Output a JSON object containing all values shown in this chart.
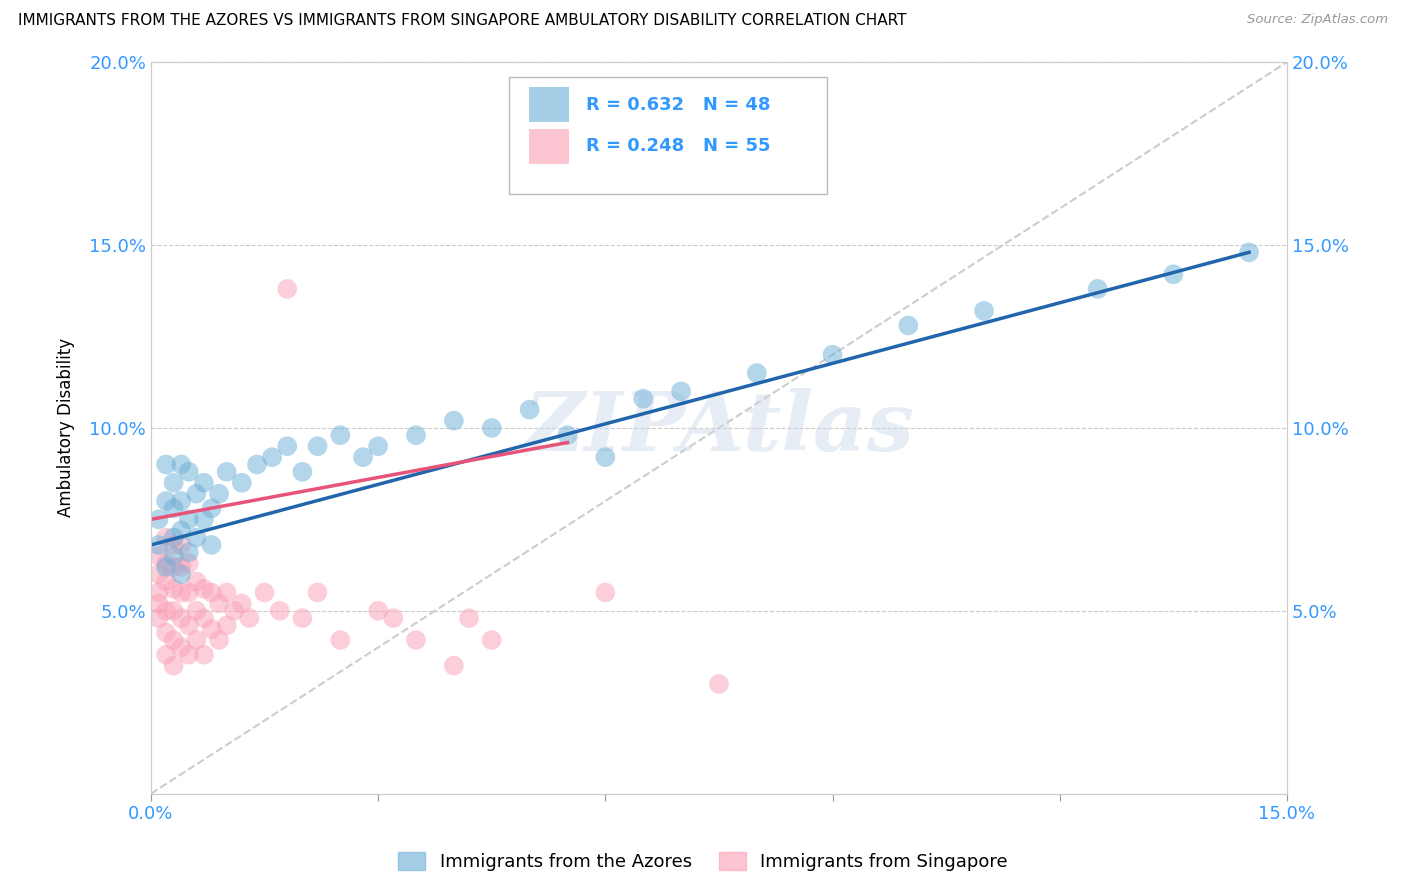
{
  "title": "IMMIGRANTS FROM THE AZORES VS IMMIGRANTS FROM SINGAPORE AMBULATORY DISABILITY CORRELATION CHART",
  "source": "Source: ZipAtlas.com",
  "ylabel": "Ambulatory Disability",
  "xlim": [
    0.0,
    0.15
  ],
  "ylim": [
    0.0,
    0.2
  ],
  "xticks": [
    0.0,
    0.03,
    0.06,
    0.09,
    0.12,
    0.15
  ],
  "yticks": [
    0.0,
    0.05,
    0.1,
    0.15,
    0.2
  ],
  "azores_color": "#6baed6",
  "azores_line_color": "#2166ac",
  "singapore_color": "#fa9fb5",
  "singapore_line_color": "#e8537a",
  "ref_line_color": "#cccccc",
  "legend_text_color": "#3399ff",
  "azores_R": 0.632,
  "azores_N": 48,
  "singapore_R": 0.248,
  "singapore_N": 55,
  "legend_label_azores": "Immigrants from the Azores",
  "legend_label_singapore": "Immigrants from Singapore",
  "watermark": "ZIPAtlas",
  "azores_x": [
    0.001,
    0.001,
    0.002,
    0.002,
    0.002,
    0.003,
    0.003,
    0.003,
    0.003,
    0.004,
    0.004,
    0.004,
    0.004,
    0.005,
    0.005,
    0.005,
    0.006,
    0.006,
    0.007,
    0.007,
    0.008,
    0.008,
    0.009,
    0.01,
    0.012,
    0.014,
    0.016,
    0.018,
    0.02,
    0.022,
    0.025,
    0.028,
    0.03,
    0.035,
    0.04,
    0.045,
    0.05,
    0.055,
    0.06,
    0.065,
    0.07,
    0.08,
    0.09,
    0.1,
    0.11,
    0.125,
    0.135,
    0.145
  ],
  "azores_y": [
    0.068,
    0.075,
    0.062,
    0.08,
    0.09,
    0.065,
    0.07,
    0.078,
    0.085,
    0.06,
    0.072,
    0.08,
    0.09,
    0.066,
    0.075,
    0.088,
    0.07,
    0.082,
    0.075,
    0.085,
    0.068,
    0.078,
    0.082,
    0.088,
    0.085,
    0.09,
    0.092,
    0.095,
    0.088,
    0.095,
    0.098,
    0.092,
    0.095,
    0.098,
    0.102,
    0.1,
    0.105,
    0.098,
    0.092,
    0.108,
    0.11,
    0.115,
    0.12,
    0.128,
    0.132,
    0.138,
    0.142,
    0.148
  ],
  "singapore_x": [
    0.001,
    0.001,
    0.001,
    0.001,
    0.001,
    0.002,
    0.002,
    0.002,
    0.002,
    0.002,
    0.002,
    0.003,
    0.003,
    0.003,
    0.003,
    0.003,
    0.003,
    0.004,
    0.004,
    0.004,
    0.004,
    0.004,
    0.005,
    0.005,
    0.005,
    0.005,
    0.006,
    0.006,
    0.006,
    0.007,
    0.007,
    0.007,
    0.008,
    0.008,
    0.009,
    0.009,
    0.01,
    0.01,
    0.011,
    0.012,
    0.013,
    0.015,
    0.017,
    0.018,
    0.02,
    0.022,
    0.025,
    0.03,
    0.032,
    0.035,
    0.04,
    0.042,
    0.045,
    0.06,
    0.075
  ],
  "singapore_y": [
    0.048,
    0.052,
    0.055,
    0.06,
    0.065,
    0.038,
    0.044,
    0.05,
    0.058,
    0.063,
    0.07,
    0.035,
    0.042,
    0.05,
    0.056,
    0.062,
    0.068,
    0.04,
    0.048,
    0.055,
    0.062,
    0.068,
    0.038,
    0.046,
    0.055,
    0.063,
    0.042,
    0.05,
    0.058,
    0.038,
    0.048,
    0.056,
    0.045,
    0.055,
    0.042,
    0.052,
    0.046,
    0.055,
    0.05,
    0.052,
    0.048,
    0.055,
    0.05,
    0.138,
    0.048,
    0.055,
    0.042,
    0.05,
    0.048,
    0.042,
    0.035,
    0.048,
    0.042,
    0.055,
    0.03
  ],
  "azores_line_x": [
    0.0,
    0.15
  ],
  "singapore_line_x": [
    0.0,
    0.055
  ]
}
